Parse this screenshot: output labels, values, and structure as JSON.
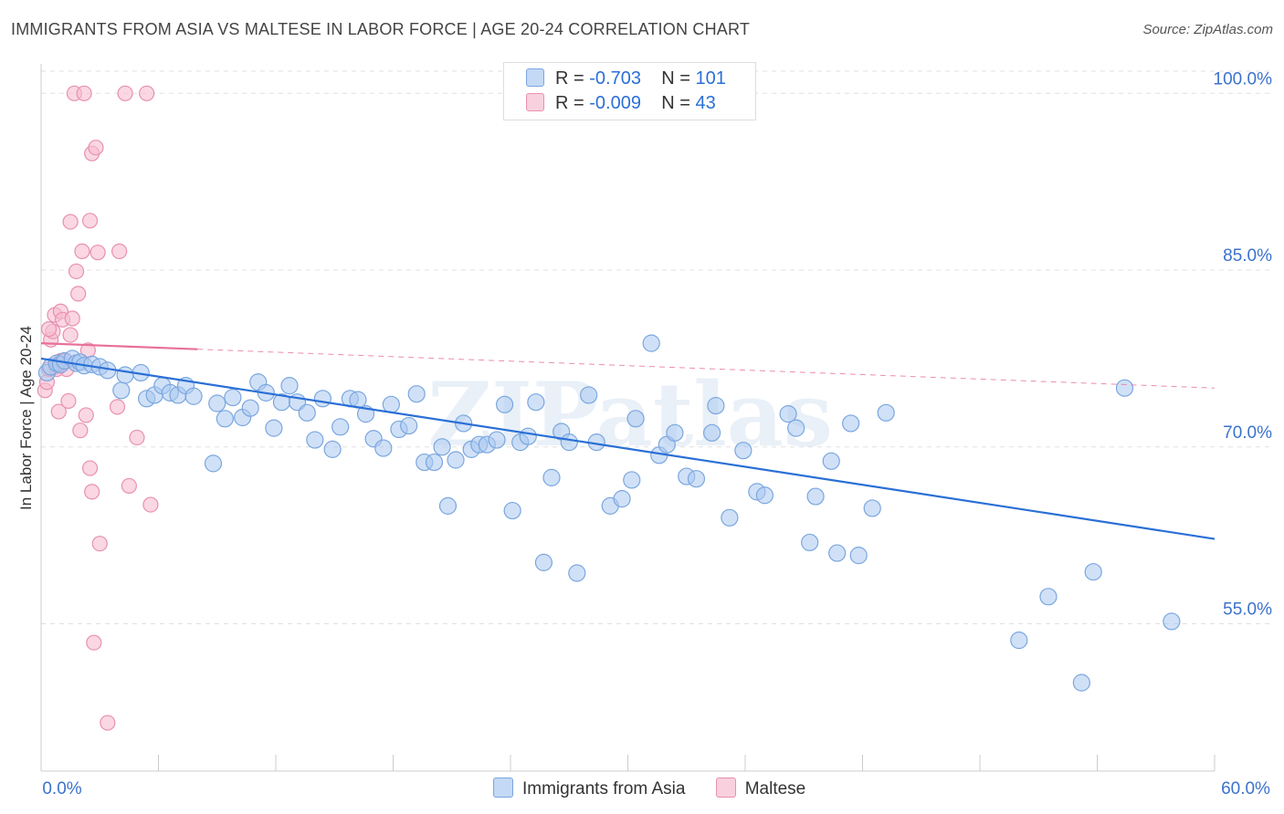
{
  "title": "IMMIGRANTS FROM ASIA VS MALTESE IN LABOR FORCE | AGE 20-24 CORRELATION CHART",
  "source": "Source: ZipAtlas.com",
  "watermark": "ZIPatlas",
  "colors": {
    "blue_fill": "#aac8f0",
    "blue_stroke": "#7aa6df",
    "blue_line": "#2a6fd6",
    "pink_fill": "#f6bcd0",
    "pink_stroke": "#e890b0",
    "pink_line": "#e8709a",
    "grid": "#e0e0e0",
    "axis_label": "#3b72cc"
  },
  "legend": {
    "rows": [
      {
        "r_label": "R =",
        "r_value": "-0.703",
        "n_label": "N =",
        "n_value": "101",
        "color": "#aac8f0"
      },
      {
        "r_label": "R =",
        "r_value": "-0.009",
        "n_label": "N =",
        "n_value": "43",
        "color": "#f6bcd0"
      }
    ]
  },
  "bottom_legend": [
    {
      "label": "Immigrants from Asia",
      "color": "#aac8f0"
    },
    {
      "label": "Maltese",
      "color": "#f6bcd0"
    }
  ],
  "chart_data": {
    "type": "scatter",
    "title": "IMMIGRANTS FROM ASIA VS MALTESE IN LABOR FORCE | AGE 20-24 CORRELATION CHART",
    "xlabel": "",
    "ylabel": "In Labor Force | Age 20-24",
    "xlim": [
      0,
      60
    ],
    "ylim": [
      42.5,
      102.5
    ],
    "x_tick_labels": [
      "0.0%",
      "60.0%"
    ],
    "y_ticks": [
      55,
      70,
      85,
      100
    ],
    "y_tick_labels": [
      "55.0%",
      "70.0%",
      "85.0%",
      "100.0%"
    ],
    "grid": true,
    "series": [
      {
        "name": "Immigrants from Asia",
        "R": -0.703,
        "N": 101,
        "trend": {
          "x": [
            0.0,
            60.0
          ],
          "y": [
            77.5,
            62.2
          ]
        },
        "points": [
          [
            0.3,
            76.3
          ],
          [
            0.5,
            76.8
          ],
          [
            0.8,
            77.1
          ],
          [
            1.0,
            77.0
          ],
          [
            1.2,
            77.3
          ],
          [
            1.6,
            77.5
          ],
          [
            1.8,
            77.1
          ],
          [
            2.0,
            77.2
          ],
          [
            2.2,
            76.9
          ],
          [
            2.6,
            77.0
          ],
          [
            3.0,
            76.8
          ],
          [
            3.4,
            76.5
          ],
          [
            4.1,
            74.8
          ],
          [
            4.3,
            76.1
          ],
          [
            5.1,
            76.3
          ],
          [
            5.4,
            74.1
          ],
          [
            5.8,
            74.4
          ],
          [
            6.2,
            75.2
          ],
          [
            6.6,
            74.6
          ],
          [
            7.0,
            74.4
          ],
          [
            7.4,
            75.2
          ],
          [
            7.8,
            74.3
          ],
          [
            8.8,
            68.6
          ],
          [
            9.0,
            73.7
          ],
          [
            9.4,
            72.4
          ],
          [
            9.8,
            74.2
          ],
          [
            10.3,
            72.5
          ],
          [
            10.7,
            73.3
          ],
          [
            11.1,
            75.5
          ],
          [
            11.5,
            74.6
          ],
          [
            11.9,
            71.6
          ],
          [
            12.3,
            73.8
          ],
          [
            12.7,
            75.2
          ],
          [
            13.1,
            73.8
          ],
          [
            13.6,
            72.9
          ],
          [
            14.0,
            70.6
          ],
          [
            14.4,
            74.1
          ],
          [
            14.9,
            69.8
          ],
          [
            15.3,
            71.7
          ],
          [
            15.8,
            74.1
          ],
          [
            16.2,
            74.0
          ],
          [
            16.6,
            72.8
          ],
          [
            17.0,
            70.7
          ],
          [
            17.5,
            69.9
          ],
          [
            17.9,
            73.6
          ],
          [
            18.3,
            71.5
          ],
          [
            18.8,
            71.8
          ],
          [
            19.2,
            74.5
          ],
          [
            19.6,
            68.7
          ],
          [
            20.1,
            68.7
          ],
          [
            20.5,
            70.0
          ],
          [
            20.8,
            65.0
          ],
          [
            21.2,
            68.9
          ],
          [
            21.6,
            72.0
          ],
          [
            22.0,
            69.8
          ],
          [
            22.4,
            70.2
          ],
          [
            22.8,
            70.2
          ],
          [
            23.3,
            70.6
          ],
          [
            23.7,
            73.6
          ],
          [
            24.1,
            64.6
          ],
          [
            24.5,
            70.4
          ],
          [
            24.9,
            70.9
          ],
          [
            25.3,
            73.8
          ],
          [
            25.7,
            60.2
          ],
          [
            26.1,
            67.4
          ],
          [
            26.6,
            71.3
          ],
          [
            27.0,
            70.4
          ],
          [
            27.4,
            59.3
          ],
          [
            28.0,
            74.4
          ],
          [
            28.4,
            70.4
          ],
          [
            29.1,
            65.0
          ],
          [
            29.7,
            65.6
          ],
          [
            30.2,
            67.2
          ],
          [
            30.4,
            72.4
          ],
          [
            31.2,
            78.8
          ],
          [
            31.6,
            69.3
          ],
          [
            32.0,
            70.2
          ],
          [
            32.4,
            71.2
          ],
          [
            33.0,
            67.5
          ],
          [
            33.5,
            67.3
          ],
          [
            34.3,
            71.2
          ],
          [
            34.5,
            73.5
          ],
          [
            35.2,
            64.0
          ],
          [
            35.9,
            69.7
          ],
          [
            36.6,
            66.2
          ],
          [
            37.0,
            65.9
          ],
          [
            38.2,
            72.8
          ],
          [
            38.6,
            71.6
          ],
          [
            39.3,
            61.9
          ],
          [
            39.6,
            65.8
          ],
          [
            40.4,
            68.8
          ],
          [
            40.7,
            61.0
          ],
          [
            41.4,
            72.0
          ],
          [
            41.8,
            60.8
          ],
          [
            42.5,
            64.8
          ],
          [
            43.2,
            72.9
          ],
          [
            50.0,
            53.6
          ],
          [
            51.5,
            57.3
          ],
          [
            53.2,
            50.0
          ],
          [
            53.8,
            59.4
          ],
          [
            55.4,
            75.0
          ],
          [
            57.8,
            55.2
          ]
        ]
      },
      {
        "name": "Maltese",
        "R": -0.009,
        "N": 43,
        "trend": {
          "x": [
            0.0,
            60.0
          ],
          "y": [
            78.8,
            75.0
          ]
        },
        "trend_solid_until_x": 8.0,
        "points": [
          [
            0.2,
            74.8
          ],
          [
            0.3,
            75.5
          ],
          [
            0.4,
            76.6
          ],
          [
            0.5,
            79.1
          ],
          [
            0.6,
            79.8
          ],
          [
            0.7,
            81.2
          ],
          [
            0.8,
            76.8
          ],
          [
            0.9,
            73.0
          ],
          [
            1.0,
            81.5
          ],
          [
            1.0,
            77.3
          ],
          [
            1.1,
            80.8
          ],
          [
            1.2,
            77.3
          ],
          [
            1.3,
            76.6
          ],
          [
            1.4,
            73.9
          ],
          [
            1.5,
            79.5
          ],
          [
            1.6,
            80.9
          ],
          [
            1.7,
            100.0
          ],
          [
            1.8,
            84.9
          ],
          [
            1.9,
            83.0
          ],
          [
            2.0,
            71.4
          ],
          [
            2.1,
            86.6
          ],
          [
            2.2,
            100.0
          ],
          [
            2.3,
            72.7
          ],
          [
            2.4,
            78.2
          ],
          [
            2.5,
            89.2
          ],
          [
            2.5,
            68.2
          ],
          [
            2.6,
            94.9
          ],
          [
            2.6,
            66.2
          ],
          [
            2.7,
            53.4
          ],
          [
            2.8,
            95.4
          ],
          [
            2.9,
            86.5
          ],
          [
            3.0,
            61.8
          ],
          [
            3.4,
            46.6
          ],
          [
            3.9,
            73.4
          ],
          [
            4.0,
            86.6
          ],
          [
            4.3,
            100.0
          ],
          [
            4.5,
            66.7
          ],
          [
            4.9,
            70.8
          ],
          [
            5.4,
            100.0
          ],
          [
            5.6,
            65.1
          ],
          [
            1.5,
            89.1
          ],
          [
            0.8,
            76.6
          ],
          [
            0.4,
            80.0
          ]
        ]
      }
    ]
  }
}
